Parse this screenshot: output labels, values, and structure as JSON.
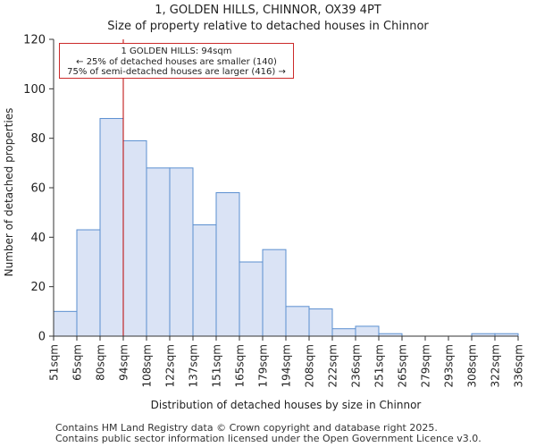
{
  "chart_data": {
    "type": "bar",
    "title": "1, GOLDEN HILLS, CHINNOR, OX39 4PT",
    "subtitle": "Size of property relative to detached houses in Chinnor",
    "xlabel": "Distribution of detached houses by size in Chinnor",
    "ylabel": "Number of detached properties",
    "ylim": [
      0,
      120
    ],
    "yticks": [
      0,
      20,
      40,
      60,
      80,
      100,
      120
    ],
    "bin_edges": [
      "51sqm",
      "65sqm",
      "80sqm",
      "94sqm",
      "108sqm",
      "122sqm",
      "137sqm",
      "151sqm",
      "165sqm",
      "179sqm",
      "194sqm",
      "208sqm",
      "222sqm",
      "236sqm",
      "251sqm",
      "265sqm",
      "279sqm",
      "293sqm",
      "308sqm",
      "322sqm",
      "336sqm"
    ],
    "values": [
      10,
      43,
      88,
      79,
      68,
      68,
      45,
      58,
      30,
      35,
      12,
      11,
      3,
      4,
      1,
      0,
      0,
      0,
      1,
      1
    ],
    "bar_fill": "#dae3f5",
    "bar_edge": "#5b8fd0",
    "marker": {
      "value_sqm": 94,
      "bin_edge_index": 3,
      "color": "#bb0000"
    },
    "annotation": {
      "line1": "1 GOLDEN HILLS: 94sqm",
      "line2": "← 25% of detached houses are smaller (140)",
      "line3": "75% of semi-detached houses are larger (416) →",
      "border_color": "#cc2a2a"
    },
    "grid": false
  },
  "footer": {
    "line1": "Contains HM Land Registry data © Crown copyright and database right 2025.",
    "line2": "Contains public sector information licensed under the Open Government Licence v3.0."
  }
}
